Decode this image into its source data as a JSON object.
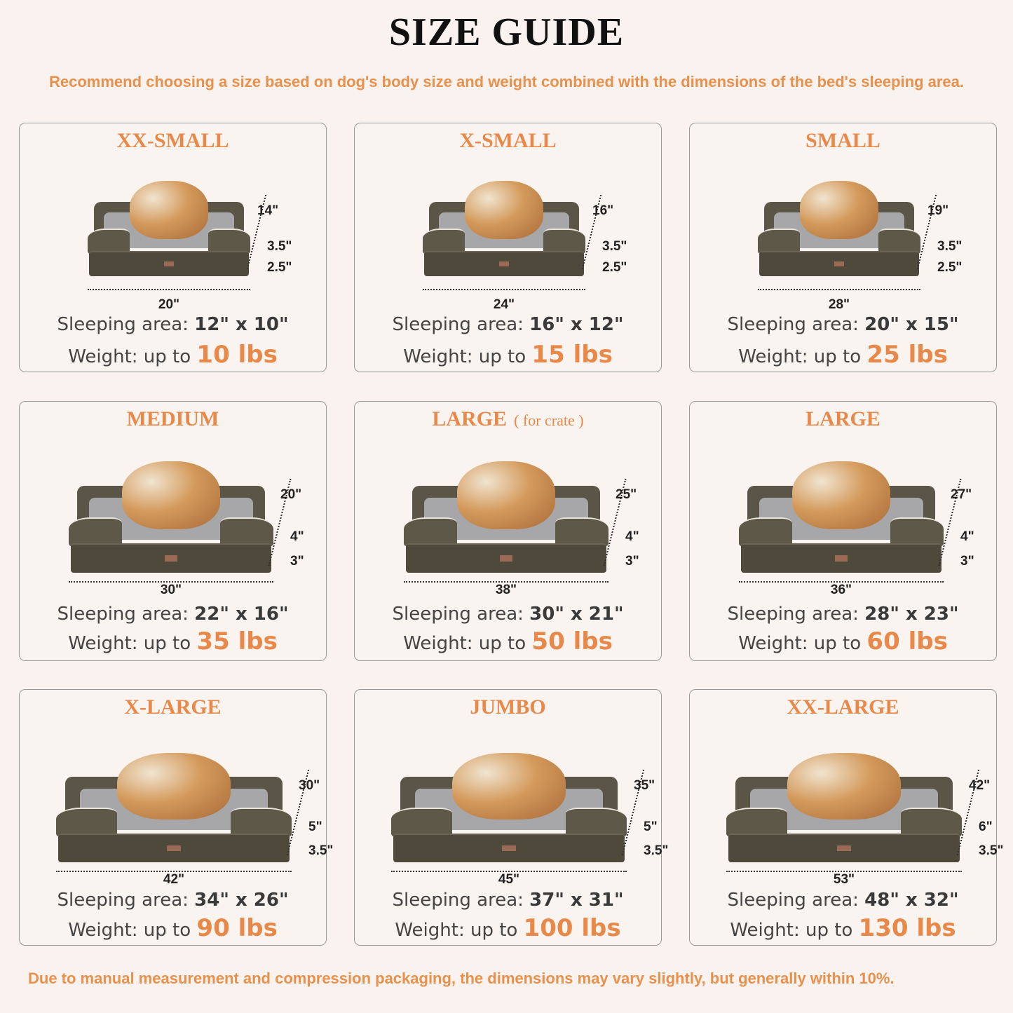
{
  "header": {
    "title": "SIZE GUIDE",
    "subtitle": "Recommend choosing a size based on dog's body size and weight combined with the dimensions of the bed's sleeping area."
  },
  "labels": {
    "sleeping_area": "Sleeping area:",
    "weight": "Weight: up to"
  },
  "sizes": [
    {
      "name": "XX-SMALL",
      "note": "",
      "width": "20\"",
      "depth": "14\"",
      "height_top": "3.5\"",
      "height_base": "2.5\"",
      "sleeping_area": "12\" x 10\"",
      "weight": "10 lbs"
    },
    {
      "name": "X-SMALL",
      "note": "",
      "width": "24\"",
      "depth": "16\"",
      "height_top": "3.5\"",
      "height_base": "2.5\"",
      "sleeping_area": "16\" x 12\"",
      "weight": "15 lbs"
    },
    {
      "name": "SMALL",
      "note": "",
      "width": "28\"",
      "depth": "19\"",
      "height_top": "3.5\"",
      "height_base": "2.5\"",
      "sleeping_area": "20\" x 15\"",
      "weight": "25 lbs"
    },
    {
      "name": "MEDIUM",
      "note": "",
      "width": "30\"",
      "depth": "20\"",
      "height_top": "4\"",
      "height_base": "3\"",
      "sleeping_area": "22\" x 16\"",
      "weight": "35 lbs"
    },
    {
      "name": "LARGE",
      "note": "( for crate )",
      "width": "38\"",
      "depth": "25\"",
      "height_top": "4\"",
      "height_base": "3\"",
      "sleeping_area": "30\" x 21\"",
      "weight": "50 lbs"
    },
    {
      "name": "LARGE",
      "note": "",
      "width": "36\"",
      "depth": "27\"",
      "height_top": "4\"",
      "height_base": "3\"",
      "sleeping_area": "28\" x 23\"",
      "weight": "60 lbs"
    },
    {
      "name": "X-LARGE",
      "note": "",
      "width": "42\"",
      "depth": "30\"",
      "height_top": "5\"",
      "height_base": "3.5\"",
      "sleeping_area": "34\" x 26\"",
      "weight": "90 lbs"
    },
    {
      "name": "JUMBO",
      "note": "",
      "width": "45\"",
      "depth": "35\"",
      "height_top": "5\"",
      "height_base": "3.5\"",
      "sleeping_area": "37\" x 31\"",
      "weight": "100 lbs"
    },
    {
      "name": "XX-LARGE",
      "note": "",
      "width": "53\"",
      "depth": "42\"",
      "height_top": "6\"",
      "height_base": "3.5\"",
      "sleeping_area": "48\" x 32\"",
      "weight": "130 lbs"
    }
  ],
  "footer": "Due to manual measurement and compression packaging, the dimensions may vary slightly, but generally within 10%.",
  "colors": {
    "accent": "#e8894a",
    "background": "#f9f2ee",
    "bed": "#5b5547"
  }
}
